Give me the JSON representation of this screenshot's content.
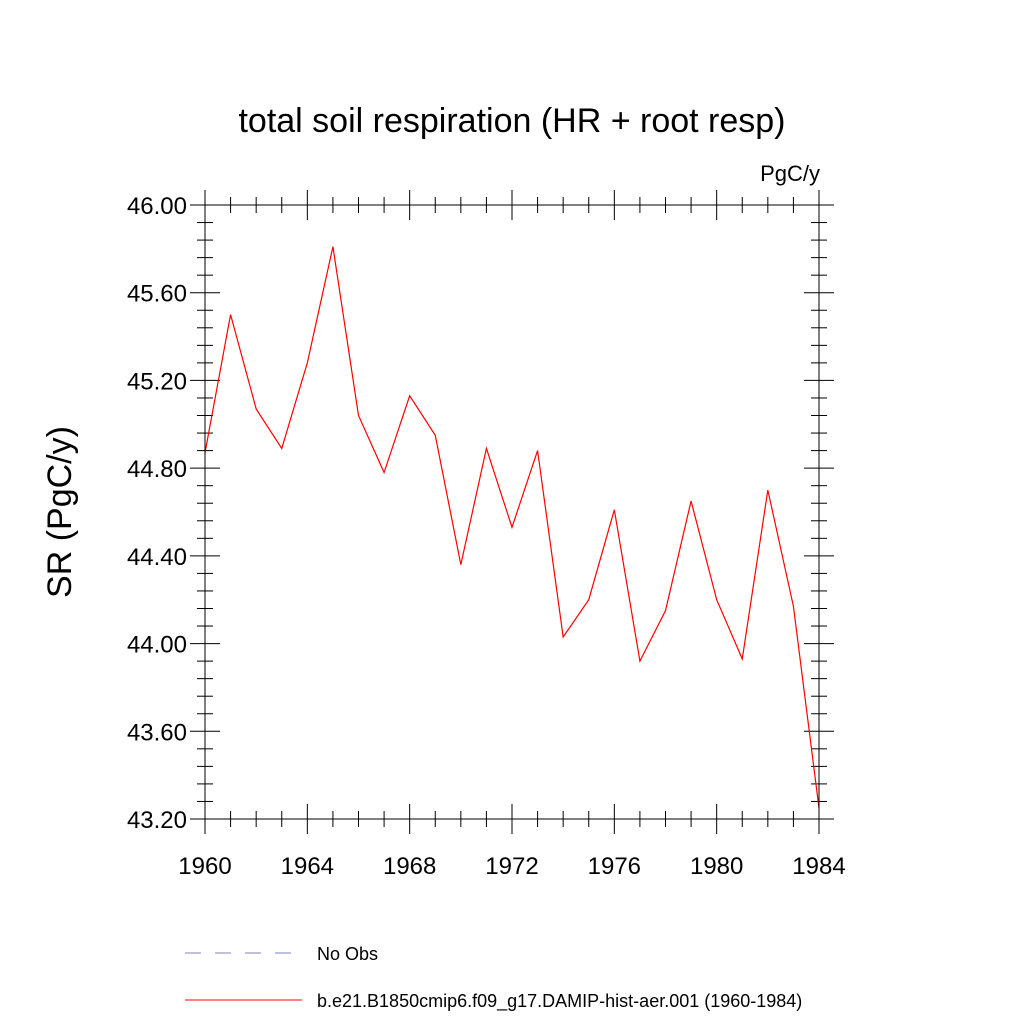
{
  "chart_data": {
    "type": "line",
    "title": "total soil respiration (HR + root resp)",
    "units": "PgC/y",
    "xlabel": "",
    "ylabel": "SR  (PgC/y)",
    "xlim": [
      1960,
      1984
    ],
    "ylim": [
      43.2,
      46.0
    ],
    "x_ticks": [
      1960,
      1964,
      1968,
      1972,
      1976,
      1980,
      1984
    ],
    "x_tick_labels": [
      "1960",
      "1964",
      "1968",
      "1972",
      "1976",
      "1980",
      "1984"
    ],
    "y_ticks": [
      43.2,
      43.6,
      44.0,
      44.4,
      44.8,
      45.2,
      45.6,
      46.0
    ],
    "y_tick_labels": [
      "43.20",
      "43.60",
      "44.00",
      "44.40",
      "44.80",
      "45.20",
      "45.60",
      "46.00"
    ],
    "x_minor_step": 1,
    "y_minor_step": 0.08,
    "grid": false,
    "legend_position": "bottom",
    "series": [
      {
        "name": "b.e21.B1850cmip6.f09_g17.DAMIP-hist-aer.001 (1960-1984)",
        "color": "#ff0000",
        "style": "solid",
        "x": [
          1960,
          1961,
          1962,
          1963,
          1964,
          1965,
          1966,
          1967,
          1968,
          1969,
          1970,
          1971,
          1972,
          1973,
          1974,
          1975,
          1976,
          1977,
          1978,
          1979,
          1980,
          1981,
          1982,
          1983,
          1984
        ],
        "y": [
          44.87,
          45.5,
          45.07,
          44.89,
          45.28,
          45.81,
          45.04,
          44.78,
          45.13,
          44.95,
          44.36,
          44.89,
          44.53,
          44.88,
          44.03,
          44.2,
          44.61,
          43.92,
          44.15,
          44.65,
          44.2,
          43.93,
          44.7,
          44.17,
          43.25
        ]
      }
    ],
    "legend": [
      {
        "label": "No Obs",
        "color": "#8080c0",
        "style": "dashed"
      },
      {
        "label": "b.e21.B1850cmip6.f09_g17.DAMIP-hist-aer.001 (1960-1984)",
        "color": "#ff0000",
        "style": "solid"
      }
    ]
  }
}
